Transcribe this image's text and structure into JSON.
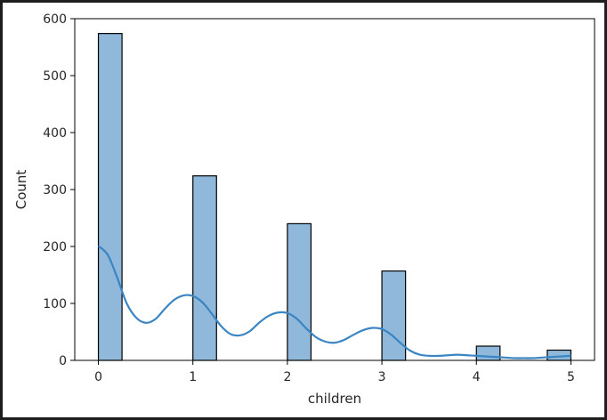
{
  "chart_data": {
    "type": "bar",
    "subtype": "histogram-with-kde",
    "xlabel": "children",
    "ylabel": "Count",
    "xlim": [
      -0.25,
      5.25
    ],
    "ylim": [
      0,
      600
    ],
    "xticks": [
      0,
      1,
      2,
      3,
      4,
      5
    ],
    "yticks": [
      0,
      100,
      200,
      300,
      400,
      500,
      600
    ],
    "bars": [
      {
        "x_start": 0,
        "x_end": 0.25,
        "count": 574
      },
      {
        "x_start": 1,
        "x_end": 1.25,
        "count": 324
      },
      {
        "x_start": 2,
        "x_end": 2.25,
        "count": 240
      },
      {
        "x_start": 3,
        "x_end": 3.25,
        "count": 157
      },
      {
        "x_start": 4,
        "x_end": 4.25,
        "count": 25
      },
      {
        "x_start": 4.75,
        "x_end": 5,
        "count": 18
      }
    ],
    "kde": {
      "x": [
        0,
        0.1,
        0.2,
        0.3,
        0.4,
        0.5,
        0.6,
        0.7,
        0.8,
        0.9,
        1,
        1.1,
        1.2,
        1.3,
        1.4,
        1.5,
        1.6,
        1.7,
        1.8,
        1.9,
        2,
        2.1,
        2.2,
        2.3,
        2.4,
        2.5,
        2.6,
        2.7,
        2.8,
        2.9,
        3,
        3.1,
        3.2,
        3.3,
        3.4,
        3.5,
        3.6,
        3.7,
        3.8,
        3.9,
        4,
        4.1,
        4.2,
        4.3,
        4.4,
        4.5,
        4.6,
        4.7,
        4.8,
        4.9,
        5
      ],
      "y": [
        201,
        185,
        145,
        100,
        75,
        66,
        72,
        90,
        106,
        114,
        113,
        102,
        82,
        60,
        46,
        44,
        51,
        66,
        78,
        84,
        83,
        73,
        56,
        41,
        33,
        31,
        36,
        45,
        53,
        57,
        55,
        45,
        30,
        17,
        10,
        8,
        8,
        9,
        10,
        9,
        8,
        7,
        6,
        5,
        4,
        4,
        4,
        5,
        6,
        7,
        8
      ]
    },
    "colors": {
      "bar_fill": "#8fb8da",
      "bar_edge": "#000000",
      "kde_line": "#3a85c4",
      "axes": "#000000",
      "text": "#262626"
    },
    "grid": false,
    "legend": "none"
  }
}
